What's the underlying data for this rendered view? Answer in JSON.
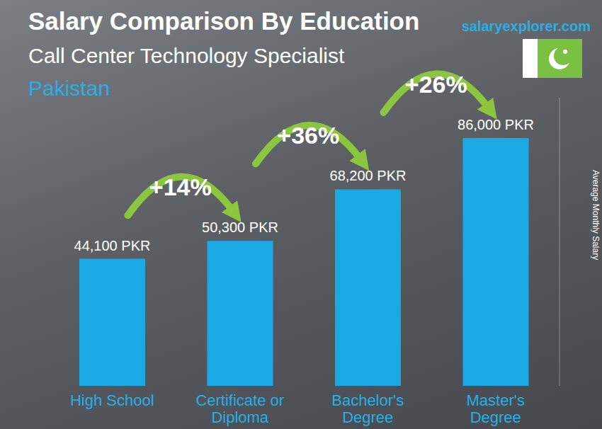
{
  "chart_data": {
    "type": "bar",
    "title": "Salary Comparison By Education",
    "subtitle": "Call Center Technology Specialist",
    "location": "Pakistan",
    "source": "salaryexplorer.com",
    "y_label": "Average Monthly Salary",
    "categories": [
      "High School",
      "Certificate or Diploma",
      "Bachelor's Degree",
      "Master's Degree"
    ],
    "values": [
      44100,
      50300,
      68200,
      86000
    ],
    "value_labels": [
      "44,100 PKR",
      "50,300 PKR",
      "68,200 PKR",
      "86,000 PKR"
    ],
    "data_labels": true,
    "color": "#1ba9e6",
    "ylim": [
      0,
      100000
    ],
    "tick_labels": "x",
    "grid": false,
    "annotations": [
      {
        "text": "+14%",
        "from": "High School",
        "to": "Certificate or Diploma"
      },
      {
        "text": "+36%",
        "from": "Certificate or Diploma",
        "to": "Bachelor's Degree"
      },
      {
        "text": "+26%",
        "from": "Bachelor's Degree",
        "to": "Master's Degree"
      }
    ]
  }
}
